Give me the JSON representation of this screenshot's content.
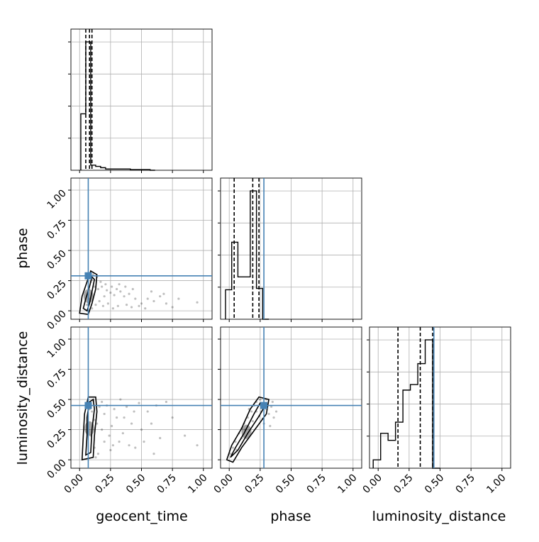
{
  "figure": {
    "type": "corner-plot",
    "parameters": [
      "geocent_time",
      "phase",
      "luminosity_distance"
    ],
    "tick_labels": [
      "0.00",
      "0.25",
      "0.50",
      "0.75",
      "1.00"
    ],
    "colors": {
      "truth": "#4682b4",
      "hist": "#000000",
      "grid": "#b0b0b0",
      "scatter": "#000000"
    }
  },
  "chart_data": [
    {
      "type": "bar",
      "panel": "geocent_time marginal",
      "xlabel": "geocent_time",
      "xlim": [
        -0.07,
        1.07
      ],
      "bin_edges": [
        0.01,
        0.05,
        0.09,
        0.13,
        0.17,
        0.21,
        0.25,
        0.29,
        0.33,
        0.37,
        0.41,
        0.45,
        0.49,
        0.53,
        0.57,
        0.61
      ],
      "values": [
        0.44,
        1.0,
        0.04,
        0.03,
        0.02,
        0.01,
        0.01,
        0.01,
        0.01,
        0.01,
        0.005,
        0.005,
        0.005,
        0.005,
        0
      ],
      "quantiles": [
        0.05,
        0.08,
        0.1
      ]
    },
    {
      "type": "bar",
      "panel": "phase marginal",
      "xlabel": "phase",
      "xlim": [
        -0.07,
        1.07
      ],
      "bin_edges": [
        -0.03,
        0.02,
        0.07,
        0.12,
        0.17,
        0.22,
        0.27,
        0.32
      ],
      "values": [
        0.23,
        0.6,
        0.33,
        0.33,
        1.0,
        0.24,
        0.0
      ],
      "quantiles": [
        0.04,
        0.19,
        0.24
      ],
      "truth": 0.28
    },
    {
      "type": "bar",
      "panel": "luminosity_distance marginal",
      "xlabel": "luminosity_distance",
      "xlim": [
        -0.07,
        1.07
      ],
      "bin_edges": [
        -0.04,
        0.02,
        0.08,
        0.14,
        0.2,
        0.26,
        0.32,
        0.38,
        0.44,
        0.5
      ],
      "values": [
        0.06,
        0.25,
        0.2,
        0.33,
        0.56,
        0.6,
        0.75,
        0.92,
        0.0
      ],
      "quantiles": [
        0.16,
        0.34,
        0.44
      ],
      "truth": 0.45
    },
    {
      "type": "scatter",
      "panel": "phase vs geocent_time",
      "xlabel": "geocent_time",
      "ylabel": "phase",
      "xlim": [
        -0.07,
        1.07
      ],
      "ylim": [
        -0.07,
        1.1
      ],
      "truth": {
        "x": 0.07,
        "y": 0.29
      },
      "points": [
        [
          0.07,
          0.29
        ],
        [
          0.06,
          0.05
        ],
        [
          0.09,
          0.24
        ],
        [
          0.1,
          0.26
        ],
        [
          0.12,
          0.2
        ],
        [
          0.15,
          0.18
        ],
        [
          0.18,
          0.2
        ],
        [
          0.2,
          0.12
        ],
        [
          0.22,
          0.17
        ],
        [
          0.25,
          0.15
        ],
        [
          0.28,
          0.13
        ],
        [
          0.3,
          0.18
        ],
        [
          0.33,
          0.16
        ],
        [
          0.36,
          0.12
        ],
        [
          0.4,
          0.14
        ],
        [
          0.45,
          0.1
        ],
        [
          0.5,
          0.06
        ],
        [
          0.55,
          0.1
        ],
        [
          0.6,
          0.08
        ],
        [
          0.65,
          0.12
        ],
        [
          0.7,
          0.06
        ],
        [
          0.75,
          0.03
        ],
        [
          0.08,
          0.1
        ],
        [
          0.1,
          0.02
        ],
        [
          0.13,
          0.05
        ],
        [
          0.16,
          0.08
        ],
        [
          0.19,
          0.04
        ],
        [
          0.23,
          0.06
        ],
        [
          0.27,
          0.02
        ],
        [
          0.31,
          0.04
        ],
        [
          0.38,
          0.05
        ],
        [
          0.42,
          0.03
        ],
        [
          0.48,
          0.04
        ],
        [
          0.53,
          0.02
        ],
        [
          0.11,
          0.3
        ],
        [
          0.14,
          0.28
        ],
        [
          0.17,
          0.24
        ],
        [
          0.21,
          0.22
        ],
        [
          0.26,
          0.2
        ],
        [
          0.32,
          0.22
        ],
        [
          0.37,
          0.2
        ],
        [
          0.43,
          0.18
        ],
        [
          0.58,
          0.16
        ],
        [
          0.68,
          0.14
        ],
        [
          0.8,
          0.1
        ],
        [
          0.95,
          0.07
        ]
      ],
      "contours": [
        [
          [
            0.03,
            0.02
          ],
          [
            0.05,
            0.1
          ],
          [
            0.08,
            0.2
          ],
          [
            0.1,
            0.28
          ],
          [
            0.12,
            0.26
          ],
          [
            0.1,
            0.16
          ],
          [
            0.08,
            0.06
          ],
          [
            0.06,
            0.0
          ],
          [
            0.03,
            0.02
          ]
        ],
        [
          [
            0.0,
            -0.02
          ],
          [
            0.02,
            0.12
          ],
          [
            0.06,
            0.24
          ],
          [
            0.09,
            0.33
          ],
          [
            0.14,
            0.3
          ],
          [
            0.13,
            0.18
          ],
          [
            0.1,
            0.06
          ],
          [
            0.07,
            -0.03
          ],
          [
            0.0,
            -0.02
          ]
        ]
      ]
    },
    {
      "type": "scatter",
      "panel": "luminosity_distance vs geocent_time",
      "xlabel": "geocent_time",
      "ylabel": "luminosity_distance",
      "xlim": [
        -0.07,
        1.07
      ],
      "ylim": [
        -0.07,
        1.1
      ],
      "truth": {
        "x": 0.07,
        "y": 0.45
      },
      "points": [
        [
          0.07,
          0.45
        ],
        [
          0.08,
          0.42
        ],
        [
          0.1,
          0.4
        ],
        [
          0.12,
          0.33
        ],
        [
          0.14,
          0.3
        ],
        [
          0.16,
          0.44
        ],
        [
          0.18,
          0.25
        ],
        [
          0.2,
          0.38
        ],
        [
          0.22,
          0.45
        ],
        [
          0.24,
          0.2
        ],
        [
          0.26,
          0.28
        ],
        [
          0.28,
          0.42
        ],
        [
          0.3,
          0.35
        ],
        [
          0.32,
          0.15
        ],
        [
          0.35,
          0.22
        ],
        [
          0.38,
          0.44
        ],
        [
          0.42,
          0.3
        ],
        [
          0.45,
          0.1
        ],
        [
          0.5,
          0.25
        ],
        [
          0.55,
          0.4
        ],
        [
          0.6,
          0.05
        ],
        [
          0.65,
          0.18
        ],
        [
          0.7,
          0.48
        ],
        [
          0.75,
          0.35
        ],
        [
          0.12,
          0.1
        ],
        [
          0.15,
          0.05
        ],
        [
          0.18,
          0.48
        ],
        [
          0.25,
          0.08
        ],
        [
          0.33,
          0.5
        ],
        [
          0.4,
          0.12
        ],
        [
          0.48,
          0.47
        ],
        [
          0.52,
          0.15
        ],
        [
          0.58,
          0.3
        ],
        [
          0.62,
          0.45
        ],
        [
          0.85,
          0.2
        ],
        [
          0.13,
          0.02
        ],
        [
          0.2,
          0.15
        ],
        [
          0.27,
          0.12
        ],
        [
          0.36,
          0.35
        ],
        [
          0.44,
          0.4
        ],
        [
          0.11,
          0.49
        ],
        [
          0.09,
          0.2
        ],
        [
          0.95,
          0.12
        ]
      ],
      "contours": [
        [
          [
            0.05,
            0.04
          ],
          [
            0.06,
            0.2
          ],
          [
            0.06,
            0.35
          ],
          [
            0.08,
            0.48
          ],
          [
            0.11,
            0.5
          ],
          [
            0.12,
            0.42
          ],
          [
            0.1,
            0.25
          ],
          [
            0.09,
            0.06
          ],
          [
            0.05,
            0.04
          ]
        ],
        [
          [
            0.02,
            0.0
          ],
          [
            0.03,
            0.2
          ],
          [
            0.04,
            0.38
          ],
          [
            0.07,
            0.52
          ],
          [
            0.13,
            0.52
          ],
          [
            0.14,
            0.4
          ],
          [
            0.12,
            0.2
          ],
          [
            0.11,
            0.02
          ],
          [
            0.02,
            0.0
          ]
        ]
      ]
    },
    {
      "type": "scatter",
      "panel": "luminosity_distance vs phase",
      "xlabel": "phase",
      "ylabel": "luminosity_distance",
      "xlim": [
        -0.07,
        1.07
      ],
      "ylim": [
        -0.07,
        1.1
      ],
      "truth": {
        "x": 0.28,
        "y": 0.45
      },
      "points": [
        [
          0.28,
          0.45
        ],
        [
          0.25,
          0.5
        ],
        [
          0.22,
          0.48
        ],
        [
          0.2,
          0.45
        ],
        [
          0.18,
          0.4
        ],
        [
          0.15,
          0.35
        ],
        [
          0.12,
          0.3
        ],
        [
          0.1,
          0.26
        ],
        [
          0.08,
          0.22
        ],
        [
          0.05,
          0.15
        ],
        [
          0.03,
          0.1
        ],
        [
          0.01,
          0.05
        ],
        [
          0.3,
          0.42
        ],
        [
          0.32,
          0.38
        ],
        [
          0.34,
          0.44
        ],
        [
          0.36,
          0.35
        ],
        [
          0.28,
          0.3
        ],
        [
          0.24,
          0.36
        ],
        [
          0.26,
          0.4
        ],
        [
          0.22,
          0.4
        ],
        [
          0.3,
          0.5
        ],
        [
          0.35,
          0.48
        ],
        [
          0.16,
          0.42
        ],
        [
          0.1,
          0.18
        ],
        [
          0.06,
          0.08
        ],
        [
          0.13,
          0.25
        ],
        [
          0.19,
          0.32
        ],
        [
          0.27,
          0.34
        ],
        [
          0.33,
          0.28
        ],
        [
          0.38,
          0.4
        ]
      ],
      "contours": [
        [
          [
            0.01,
            0.02
          ],
          [
            0.05,
            0.1
          ],
          [
            0.12,
            0.22
          ],
          [
            0.2,
            0.38
          ],
          [
            0.25,
            0.47
          ],
          [
            0.29,
            0.45
          ],
          [
            0.24,
            0.36
          ],
          [
            0.15,
            0.22
          ],
          [
            0.07,
            0.08
          ],
          [
            0.01,
            0.02
          ]
        ],
        [
          [
            -0.02,
            0.0
          ],
          [
            0.02,
            0.12
          ],
          [
            0.1,
            0.26
          ],
          [
            0.17,
            0.42
          ],
          [
            0.24,
            0.52
          ],
          [
            0.32,
            0.5
          ],
          [
            0.3,
            0.38
          ],
          [
            0.2,
            0.24
          ],
          [
            0.1,
            0.1
          ],
          [
            0.03,
            -0.02
          ],
          [
            -0.02,
            0.0
          ]
        ]
      ]
    }
  ]
}
